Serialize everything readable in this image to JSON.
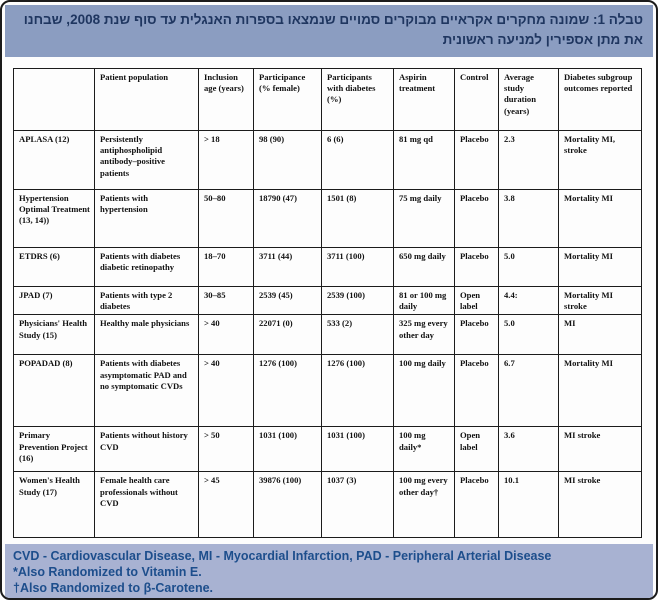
{
  "title": {
    "text": "טבלה 1: שמונה מחקרים אקראיים מבוקרים סמויים שנמצאו בספרות האנגלית עד סוף שנת 2008, שבחנו את מתן אספירין למניעה ראשונית"
  },
  "table": {
    "headers": [
      "",
      "Patient population",
      "Inclusion age (years)",
      "Participance (% female)",
      "Participants with diabetes (%)",
      "Aspirin treatment",
      "Control",
      "Average study duration (years)",
      "Diabetes subgroup outcomes reported"
    ],
    "rows": [
      [
        "APLASA (12)",
        "Persistently antiphospholipid antibody–positive patients",
        "> 18",
        "98 (90)",
        "6 (6)",
        "81 mg qd",
        "Placebo",
        "2.3",
        "Mortality MI, stroke"
      ],
      [
        "Hypertension Optimal Treatment (13, 14))",
        "Patients with hypertension",
        "50–80",
        "18790 (47)",
        "1501 (8)",
        "75 mg daily",
        "Placebo",
        "3.8",
        "Mortality MI"
      ],
      [
        "ETDRS (6)",
        "Patients with diabetes diabetic retinopathy",
        "18–70",
        "3711 (44)",
        "3711 (100)",
        "650 mg daily",
        "Placebo",
        "5.0",
        "Mortality MI"
      ],
      [
        "JPAD (7)",
        "Patients with type 2 diabetes",
        "30–85",
        "2539 (45)",
        "2539 (100)",
        "81 or 100 mg daily",
        "Open label",
        "4.4:",
        "Mortality MI stroke"
      ],
      [
        "Physicians' Health Study (15)",
        "Healthy male physicians",
        "> 40",
        "22071 (0)",
        "533 (2)",
        "325 mg every other day",
        "Placebo",
        "5.0",
        "MI"
      ],
      [
        "POPADAD (8)",
        "Patients with diabetes asymptomatic PAD and no symptomatic CVDs",
        "> 40",
        "1276 (100)",
        "1276 (100)",
        "100 mg daily",
        "Placebo",
        "6.7",
        "Mortality MI"
      ],
      [
        "Primary Prevention Project (16)",
        "Patients without history CVD",
        "> 50",
        "1031 (100)",
        "1031 (100)",
        "100 mg daily*",
        "Open label",
        "3.6",
        "MI stroke"
      ],
      [
        "Women's Health Study (17)",
        "Female health care professionals without CVD",
        "> 45",
        "39876 (100)",
        "1037 (3)",
        "100 mg every other day†",
        "Placebo",
        "10.1",
        "MI stroke"
      ]
    ]
  },
  "footer": {
    "lines": [
      "CVD - Cardiovascular Disease, MI - Myocardial Infarction, PAD - Peripheral Arterial Disease",
      "*Also Randomized to Vitamin E.",
      "†Also Randomized to β-Carotene."
    ]
  },
  "colors": {
    "title_bar_bg": "#8b9dc1",
    "title_text": "#1f3660",
    "footer_bg": "#a8b2d2",
    "footer_text": "#1d4e8c",
    "table_border": "#1c1c1c"
  }
}
